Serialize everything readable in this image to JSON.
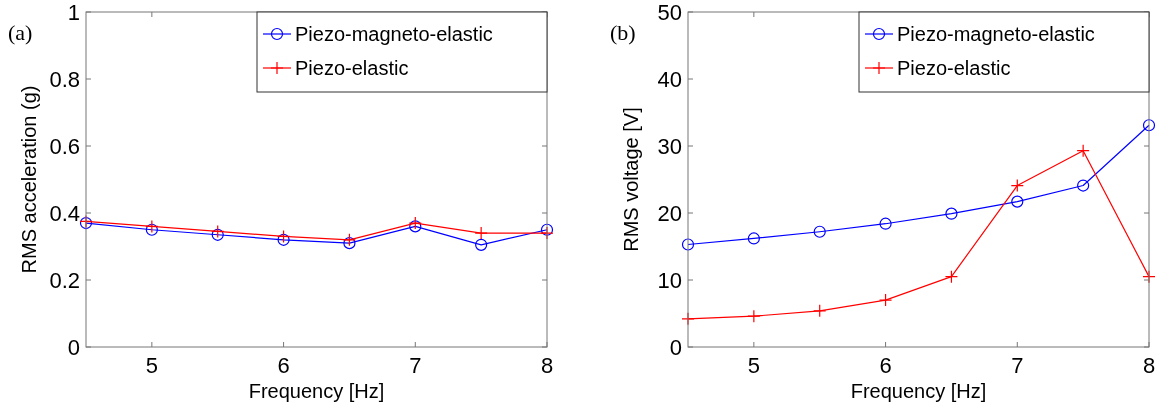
{
  "chart_data": [
    {
      "type": "line",
      "annotations": [
        "(a)"
      ],
      "xlabel": "Frequency [Hz]",
      "ylabel": "RMS acceleration (g)",
      "x": [
        4.5,
        5,
        5.5,
        6,
        6.5,
        7,
        7.5,
        8
      ],
      "xlim": [
        4.5,
        8
      ],
      "xticks": [
        5,
        6,
        7,
        8
      ],
      "ylim": [
        0,
        1
      ],
      "yticks": [
        0,
        0.2,
        0.4,
        0.6,
        0.8,
        1
      ],
      "legend": "top right",
      "grid": false,
      "series": [
        {
          "name": "Piezo-magneto-elastic",
          "color": "#0000ff",
          "marker": "circle",
          "values": [
            0.37,
            0.35,
            0.335,
            0.32,
            0.31,
            0.36,
            0.305,
            0.35
          ]
        },
        {
          "name": "Piezo-elastic",
          "color": "#ff0000",
          "marker": "cross",
          "values": [
            0.375,
            0.36,
            0.345,
            0.33,
            0.32,
            0.37,
            0.34,
            0.34
          ]
        }
      ]
    },
    {
      "type": "line",
      "annotations": [
        "(b)"
      ],
      "xlabel": "Frequency [Hz]",
      "ylabel": "RMS voltage [V]",
      "x": [
        4.5,
        5,
        5.5,
        6,
        6.5,
        7,
        7.5,
        8
      ],
      "xlim": [
        4.5,
        8
      ],
      "xticks": [
        5,
        6,
        7,
        8
      ],
      "ylim": [
        0,
        50
      ],
      "yticks": [
        0,
        10,
        20,
        30,
        40,
        50
      ],
      "legend": "top right",
      "grid": false,
      "series": [
        {
          "name": "Piezo-magneto-elastic",
          "color": "#0000ff",
          "marker": "circle",
          "values": [
            15.3,
            16.2,
            17.2,
            18.4,
            19.9,
            21.7,
            24.1,
            33.1
          ]
        },
        {
          "name": "Piezo-elastic",
          "color": "#ff0000",
          "marker": "cross",
          "values": [
            4.2,
            4.6,
            5.4,
            7.0,
            10.5,
            24.1,
            29.3,
            10.5
          ]
        }
      ]
    }
  ]
}
